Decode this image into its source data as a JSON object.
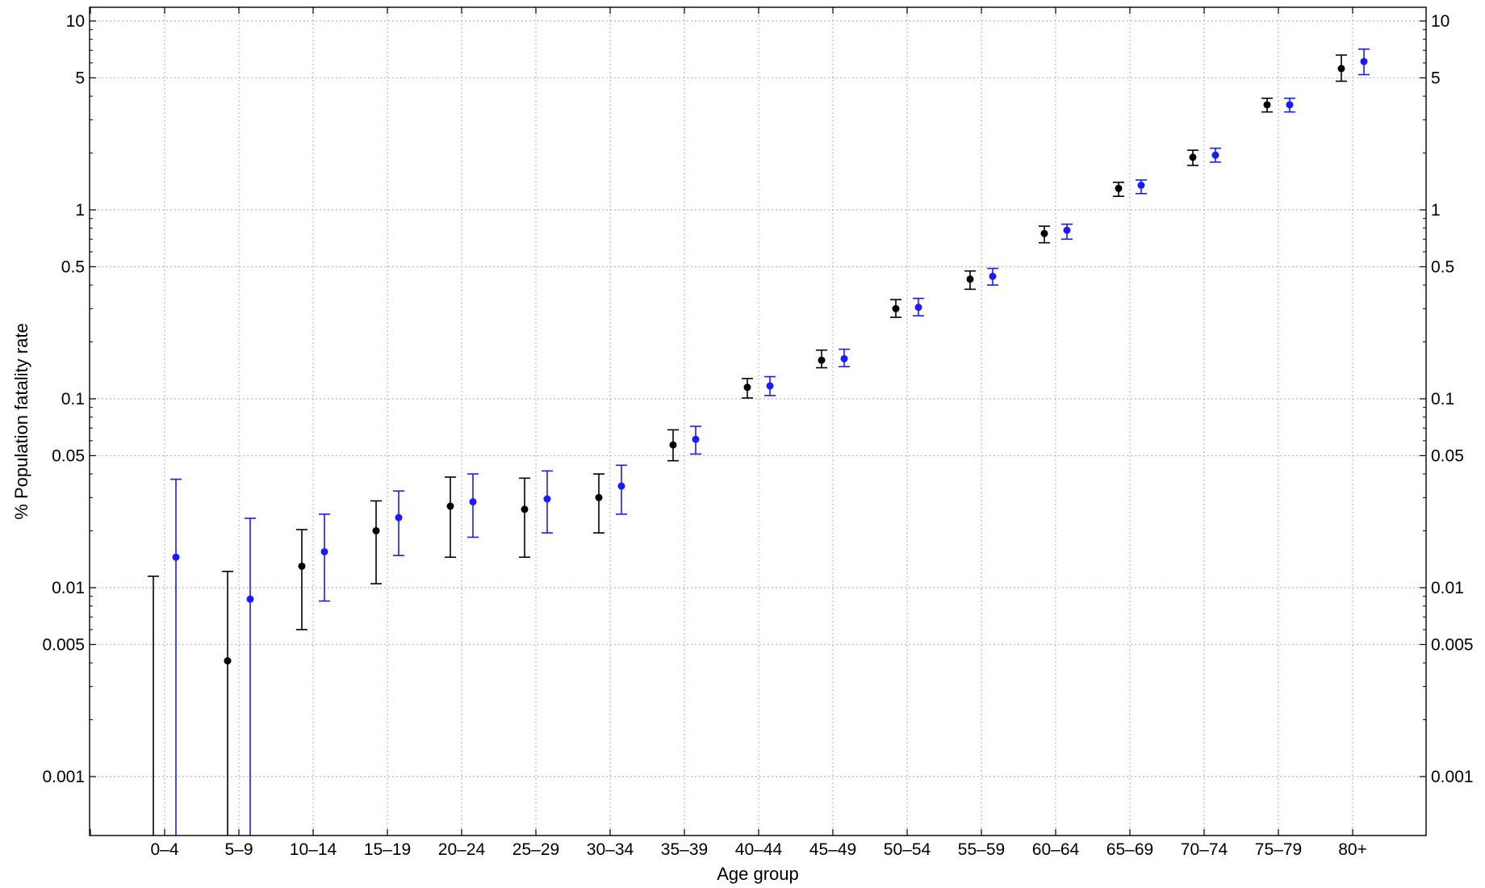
{
  "chart_data": {
    "type": "scatter",
    "xlabel": "Age group",
    "ylabel": "% Population fatality rate",
    "yscale": "log",
    "ylim": [
      0.0004,
      14
    ],
    "yticks": [
      0.001,
      0.005,
      0.01,
      0.05,
      0.1,
      0.5,
      1,
      5,
      10
    ],
    "ytick_labels": [
      "0.001",
      "0.005",
      "0.01",
      "0.05",
      "0.1",
      "0.5",
      "1",
      "5",
      "10"
    ],
    "grid": true,
    "legend": "none",
    "categories": [
      "0–4",
      "5–9",
      "10–14",
      "15–19",
      "20–24",
      "25–29",
      "30–34",
      "35–39",
      "40–44",
      "45–49",
      "50–54",
      "55–59",
      "60–64",
      "65–69",
      "70–74",
      "75–79",
      "80+"
    ],
    "series": [
      {
        "color": "#000000",
        "values": [
          null,
          0.0041,
          0.013,
          0.02,
          0.027,
          0.026,
          0.03,
          0.057,
          0.115,
          0.16,
          0.3,
          0.43,
          0.75,
          1.3,
          1.9,
          3.6,
          5.6
        ],
        "lower": [
          0.0004,
          0.0004,
          0.006,
          0.0105,
          0.0145,
          0.0145,
          0.0195,
          0.047,
          0.101,
          0.146,
          0.27,
          0.38,
          0.67,
          1.18,
          1.72,
          3.3,
          4.8
        ],
        "upper": [
          0.0115,
          0.0122,
          0.0203,
          0.0288,
          0.0385,
          0.038,
          0.04,
          0.0685,
          0.128,
          0.181,
          0.335,
          0.475,
          0.82,
          1.4,
          2.07,
          3.9,
          6.6
        ]
      },
      {
        "color": "#1a1aff",
        "values": [
          0.0145,
          0.0087,
          0.0155,
          0.0235,
          0.0285,
          0.0295,
          0.0345,
          0.061,
          0.117,
          0.163,
          0.305,
          0.445,
          0.78,
          1.35,
          1.95,
          3.6,
          6.1
        ],
        "lower": [
          0.0004,
          0.00045,
          0.0085,
          0.0148,
          0.0185,
          0.0195,
          0.0245,
          0.051,
          0.104,
          0.148,
          0.275,
          0.4,
          0.7,
          1.22,
          1.79,
          3.3,
          5.2
        ],
        "upper": [
          0.0375,
          0.0233,
          0.0245,
          0.0325,
          0.04,
          0.0415,
          0.0445,
          0.0715,
          0.131,
          0.183,
          0.34,
          0.49,
          0.84,
          1.44,
          2.12,
          3.9,
          7.1
        ]
      }
    ]
  }
}
